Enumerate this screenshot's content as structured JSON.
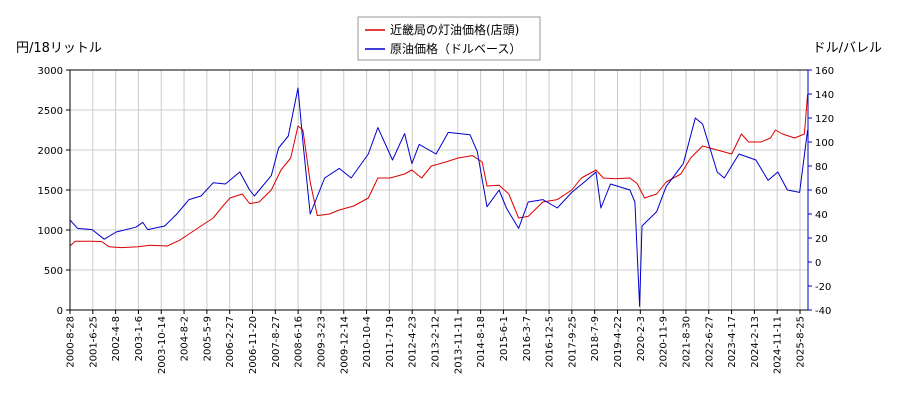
{
  "chart_data": {
    "type": "line",
    "y_left_label": "円/18リットル",
    "y_right_label": "ドル/バレル",
    "y_left_range": [
      0,
      3000
    ],
    "y_left_ticks": [
      "0",
      "500",
      "1000",
      "1500",
      "2000",
      "2500",
      "3000"
    ],
    "y_right_range": [
      -40,
      160
    ],
    "y_right_ticks": [
      "-40",
      "-20",
      "0",
      "20",
      "40",
      "60",
      "80",
      "100",
      "120",
      "140",
      "160"
    ],
    "x_range": [
      "2000-08-28",
      "2026-01-15"
    ],
    "x_ticks": [
      "2000-8-28",
      "2001-6-25",
      "2002-4-8",
      "2003-1-6",
      "2003-10-14",
      "2004-8-2",
      "2005-5-9",
      "2006-2-27",
      "2006-11-20",
      "2007-8-27",
      "2008-6-16",
      "2009-3-23",
      "2009-12-14",
      "2010-10-4",
      "2011-7-19",
      "2012-4-23",
      "2013-2-12",
      "2013-11-11",
      "2014-8-18",
      "2015-6-1",
      "2016-3-7",
      "2016-12-5",
      "2017-9-25",
      "2018-7-9",
      "2019-4-22",
      "2020-2-3",
      "2020-11-9",
      "2021-8-30",
      "2022-6-27",
      "2023-4-17",
      "2024-2-13",
      "2024-11-11",
      "2025-8-25"
    ],
    "grid": true,
    "legend_position": "top-center",
    "series": [
      {
        "name": "近畿局の灯油価格(店頭)",
        "axis": "left",
        "color": "#dd0000",
        "points": [
          [
            "2000-08-28",
            800
          ],
          [
            "2000-11-01",
            860
          ],
          [
            "2001-06-01",
            860
          ],
          [
            "2001-10-01",
            855
          ],
          [
            "2002-01-01",
            790
          ],
          [
            "2002-06-01",
            780
          ],
          [
            "2003-01-01",
            790
          ],
          [
            "2003-06-01",
            810
          ],
          [
            "2004-01-01",
            800
          ],
          [
            "2004-06-01",
            870
          ],
          [
            "2004-10-01",
            950
          ],
          [
            "2005-03-01",
            1050
          ],
          [
            "2005-08-01",
            1150
          ],
          [
            "2005-12-01",
            1300
          ],
          [
            "2006-03-01",
            1400
          ],
          [
            "2006-08-01",
            1450
          ],
          [
            "2006-11-01",
            1330
          ],
          [
            "2007-03-01",
            1350
          ],
          [
            "2007-08-01",
            1500
          ],
          [
            "2007-12-01",
            1750
          ],
          [
            "2008-04-01",
            1900
          ],
          [
            "2008-07-01",
            2300
          ],
          [
            "2008-09-01",
            2250
          ],
          [
            "2008-12-01",
            1600
          ],
          [
            "2009-03-01",
            1180
          ],
          [
            "2009-08-01",
            1200
          ],
          [
            "2009-12-01",
            1250
          ],
          [
            "2010-06-01",
            1300
          ],
          [
            "2010-12-01",
            1400
          ],
          [
            "2011-04-01",
            1650
          ],
          [
            "2011-09-01",
            1650
          ],
          [
            "2012-03-01",
            1700
          ],
          [
            "2012-06-01",
            1750
          ],
          [
            "2012-10-01",
            1650
          ],
          [
            "2013-02-01",
            1800
          ],
          [
            "2013-08-01",
            1850
          ],
          [
            "2014-01-01",
            1900
          ],
          [
            "2014-07-01",
            1930
          ],
          [
            "2014-11-01",
            1850
          ],
          [
            "2015-01-01",
            1550
          ],
          [
            "2015-06-01",
            1560
          ],
          [
            "2015-10-01",
            1450
          ],
          [
            "2016-02-01",
            1150
          ],
          [
            "2016-06-01",
            1170
          ],
          [
            "2016-12-01",
            1350
          ],
          [
            "2017-06-01",
            1380
          ],
          [
            "2017-12-01",
            1500
          ],
          [
            "2018-04-01",
            1650
          ],
          [
            "2018-10-01",
            1750
          ],
          [
            "2019-01-01",
            1650
          ],
          [
            "2019-06-01",
            1640
          ],
          [
            "2019-12-01",
            1650
          ],
          [
            "2020-03-01",
            1580
          ],
          [
            "2020-06-01",
            1400
          ],
          [
            "2020-11-01",
            1450
          ],
          [
            "2021-03-01",
            1600
          ],
          [
            "2021-09-01",
            1700
          ],
          [
            "2022-01-01",
            1900
          ],
          [
            "2022-06-01",
            2050
          ],
          [
            "2022-12-01",
            2000
          ],
          [
            "2023-06-01",
            1950
          ],
          [
            "2023-10-01",
            2200
          ],
          [
            "2024-01-01",
            2100
          ],
          [
            "2024-06-01",
            2100
          ],
          [
            "2024-10-01",
            2150
          ],
          [
            "2024-12-01",
            2250
          ],
          [
            "2025-03-01",
            2200
          ],
          [
            "2025-08-01",
            2150
          ],
          [
            "2025-12-01",
            2200
          ],
          [
            "2026-01-10",
            2700
          ]
        ]
      },
      {
        "name": "原油価格（ドルベース）",
        "axis": "right",
        "color": "#0000cc",
        "points": [
          [
            "2000-08-28",
            35
          ],
          [
            "2000-12-01",
            28
          ],
          [
            "2001-06-01",
            27
          ],
          [
            "2001-11-01",
            19
          ],
          [
            "2002-04-01",
            25
          ],
          [
            "2002-12-01",
            29
          ],
          [
            "2003-03-01",
            33
          ],
          [
            "2003-05-01",
            27
          ],
          [
            "2003-12-01",
            30
          ],
          [
            "2004-05-01",
            40
          ],
          [
            "2004-10-01",
            52
          ],
          [
            "2005-03-01",
            55
          ],
          [
            "2005-08-01",
            66
          ],
          [
            "2006-01-01",
            65
          ],
          [
            "2006-07-01",
            75
          ],
          [
            "2006-11-01",
            60
          ],
          [
            "2007-01-01",
            55
          ],
          [
            "2007-08-01",
            72
          ],
          [
            "2007-11-01",
            95
          ],
          [
            "2008-03-01",
            105
          ],
          [
            "2008-07-01",
            145
          ],
          [
            "2008-09-01",
            100
          ],
          [
            "2008-12-01",
            40
          ],
          [
            "2009-06-01",
            70
          ],
          [
            "2009-12-01",
            78
          ],
          [
            "2010-05-01",
            70
          ],
          [
            "2010-12-01",
            90
          ],
          [
            "2011-04-01",
            112
          ],
          [
            "2011-10-01",
            85
          ],
          [
            "2012-03-01",
            107
          ],
          [
            "2012-06-01",
            82
          ],
          [
            "2012-09-01",
            98
          ],
          [
            "2013-04-01",
            90
          ],
          [
            "2013-09-01",
            108
          ],
          [
            "2014-06-01",
            106
          ],
          [
            "2014-09-01",
            92
          ],
          [
            "2015-01-01",
            46
          ],
          [
            "2015-06-01",
            60
          ],
          [
            "2015-09-01",
            45
          ],
          [
            "2016-02-01",
            28
          ],
          [
            "2016-06-01",
            50
          ],
          [
            "2016-12-01",
            52
          ],
          [
            "2017-06-01",
            45
          ],
          [
            "2017-12-01",
            58
          ],
          [
            "2018-06-01",
            68
          ],
          [
            "2018-10-01",
            75
          ],
          [
            "2018-12-01",
            45
          ],
          [
            "2019-04-01",
            65
          ],
          [
            "2019-12-01",
            60
          ],
          [
            "2020-02-01",
            50
          ],
          [
            "2020-04-01",
            -37
          ],
          [
            "2020-05-01",
            30
          ],
          [
            "2020-11-01",
            42
          ],
          [
            "2021-03-01",
            63
          ],
          [
            "2021-10-01",
            82
          ],
          [
            "2022-03-01",
            120
          ],
          [
            "2022-06-01",
            115
          ],
          [
            "2022-12-01",
            75
          ],
          [
            "2023-03-01",
            70
          ],
          [
            "2023-09-01",
            90
          ],
          [
            "2024-04-01",
            85
          ],
          [
            "2024-09-01",
            68
          ],
          [
            "2025-01-01",
            75
          ],
          [
            "2025-05-01",
            60
          ],
          [
            "2025-10-01",
            58
          ],
          [
            "2026-01-10",
            110
          ]
        ]
      }
    ]
  }
}
